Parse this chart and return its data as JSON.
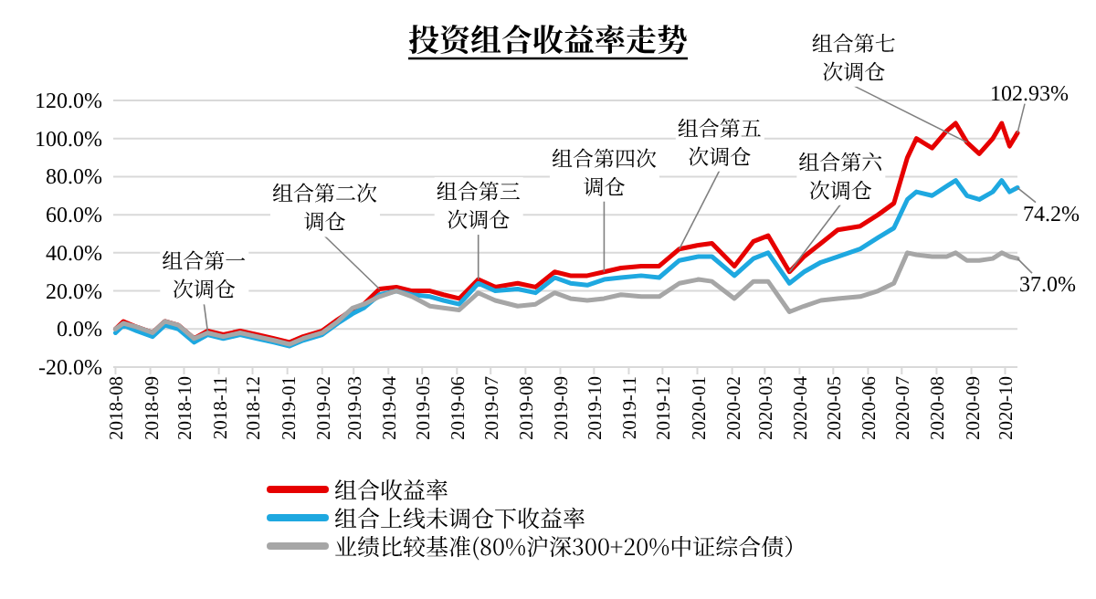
{
  "chart_data": {
    "type": "line",
    "title": "投资组合收益率走势",
    "x": [
      "2018-08-01",
      "2018-08-08",
      "2018-08-20",
      "2018-09-03",
      "2018-09-14",
      "2018-09-26",
      "2018-10-10",
      "2018-10-22",
      "2018-11-05",
      "2018-11-20",
      "2018-12-05",
      "2018-12-20",
      "2019-01-03",
      "2019-01-15",
      "2019-02-01",
      "2019-02-15",
      "2019-02-28",
      "2019-03-10",
      "2019-03-24",
      "2019-04-08",
      "2019-04-22",
      "2019-05-08",
      "2019-05-20",
      "2019-06-03",
      "2019-06-20",
      "2019-07-05",
      "2019-07-25",
      "2019-08-10",
      "2019-08-27",
      "2019-09-10",
      "2019-09-25",
      "2019-10-10",
      "2019-10-25",
      "2019-11-12",
      "2019-11-28",
      "2019-12-16",
      "2020-01-02",
      "2020-01-14",
      "2020-02-03",
      "2020-02-20",
      "2020-03-04",
      "2020-03-23",
      "2020-04-05",
      "2020-04-20",
      "2020-05-05",
      "2020-05-25",
      "2020-06-10",
      "2020-06-24",
      "2020-07-06",
      "2020-07-14",
      "2020-07-28",
      "2020-08-10",
      "2020-08-18",
      "2020-08-28",
      "2020-09-08",
      "2020-09-20",
      "2020-09-28",
      "2020-10-05",
      "2020-10-12"
    ],
    "series": [
      {
        "name": "组合收益率",
        "color": "#e60000",
        "values": [
          0,
          4,
          1,
          -2,
          4,
          2,
          -5,
          -1,
          -3,
          -1,
          -3,
          -5,
          -7,
          -4,
          -1,
          5,
          10,
          13,
          21,
          22,
          20,
          20,
          18,
          16,
          26,
          22,
          24,
          22,
          30,
          28,
          28,
          30,
          32,
          33,
          33,
          42,
          44,
          45,
          33,
          46,
          49,
          30,
          38,
          45,
          52,
          54,
          60,
          66,
          90,
          100,
          95,
          104,
          108,
          98,
          92,
          100,
          108,
          96,
          102.93
        ],
        "value_labels": [
          null,
          null,
          null,
          null,
          null,
          null,
          null,
          null,
          null,
          null,
          null,
          null,
          null,
          null,
          null,
          null,
          null,
          null,
          null,
          null,
          null,
          null,
          null,
          null,
          null,
          null,
          null,
          null,
          null,
          null,
          null,
          null,
          null,
          null,
          null,
          null,
          null,
          null,
          null,
          null,
          null,
          null,
          null,
          null,
          null,
          null,
          null,
          null,
          null,
          null,
          null,
          null,
          null,
          null,
          null,
          null,
          null,
          null,
          "102.93%"
        ]
      },
      {
        "name": "组合上线未调仓下收益率",
        "color": "#1ea8e0",
        "values": [
          -2,
          2,
          -1,
          -4,
          2,
          0,
          -7,
          -3,
          -5,
          -3,
          -5,
          -7,
          -9,
          -6,
          -3,
          3,
          8,
          11,
          18,
          20,
          18,
          17,
          15,
          13,
          24,
          20,
          21,
          19,
          27,
          24,
          23,
          26,
          27,
          28,
          27,
          36,
          38,
          38,
          28,
          37,
          40,
          24,
          30,
          35,
          38,
          42,
          48,
          53,
          68,
          72,
          70,
          75,
          78,
          70,
          68,
          72,
          78,
          72,
          74.2
        ],
        "value_labels": [
          null,
          null,
          null,
          null,
          null,
          null,
          null,
          null,
          null,
          null,
          null,
          null,
          null,
          null,
          null,
          null,
          null,
          null,
          null,
          null,
          null,
          null,
          null,
          null,
          null,
          null,
          null,
          null,
          null,
          null,
          null,
          null,
          null,
          null,
          null,
          null,
          null,
          null,
          null,
          null,
          null,
          null,
          null,
          null,
          null,
          null,
          null,
          null,
          null,
          null,
          null,
          null,
          null,
          null,
          null,
          null,
          null,
          null,
          "74.2%"
        ]
      },
      {
        "name": "业绩比较基准(80%沪深300+20%中证综合债）",
        "color": "#a6a6a6",
        "values": [
          0,
          3,
          1,
          -2,
          4,
          2,
          -5,
          -2,
          -4,
          -2,
          -4,
          -6,
          -8,
          -5,
          -2,
          4,
          11,
          13,
          17,
          20,
          17,
          12,
          11,
          10,
          19,
          15,
          12,
          13,
          19,
          16,
          15,
          16,
          18,
          17,
          17,
          24,
          26,
          25,
          16,
          25,
          25,
          9,
          12,
          15,
          16,
          17,
          20,
          24,
          40,
          39,
          38,
          38,
          40,
          36,
          36,
          37,
          40,
          38,
          37.0
        ],
        "value_labels": [
          null,
          null,
          null,
          null,
          null,
          null,
          null,
          null,
          null,
          null,
          null,
          null,
          null,
          null,
          null,
          null,
          null,
          null,
          null,
          null,
          null,
          null,
          null,
          null,
          null,
          null,
          null,
          null,
          null,
          null,
          null,
          null,
          null,
          null,
          null,
          null,
          null,
          null,
          null,
          null,
          null,
          null,
          null,
          null,
          null,
          null,
          null,
          null,
          null,
          null,
          null,
          null,
          null,
          null,
          null,
          null,
          null,
          null,
          "37.0%"
        ]
      }
    ],
    "xlim": [
      "2018-07-30",
      "2020-10-12"
    ],
    "xticks": [
      "2018-08",
      "2018-09",
      "2018-10",
      "2018-11",
      "2018-12",
      "2019-01",
      "2019-02",
      "2019-03",
      "2019-04",
      "2019-05",
      "2019-06",
      "2019-07",
      "2019-08",
      "2019-09",
      "2019-10",
      "2019-11",
      "2019-12",
      "2020-01",
      "2020-02",
      "2020-03",
      "2020-04",
      "2020-05",
      "2020-06",
      "2020-07",
      "2020-08",
      "2020-09",
      "2020-10"
    ],
    "ylim": [
      -20,
      120
    ],
    "yticks": [
      {
        "value": -20,
        "label": "-20.0%"
      },
      {
        "value": 0,
        "label": "0.0%"
      },
      {
        "value": 20,
        "label": "20.0%"
      },
      {
        "value": 40,
        "label": "40.0%"
      },
      {
        "value": 60,
        "label": "60.0%"
      },
      {
        "value": 80,
        "label": "80.0%"
      },
      {
        "value": 100,
        "label": "100.0%"
      },
      {
        "value": 120,
        "label": "120.0%"
      }
    ],
    "annotations": [
      {
        "text": "组合第一次调仓",
        "x": "2018-10-22",
        "y": -1
      },
      {
        "text": "组合第二次调仓",
        "x": "2019-03-24",
        "y": 21
      },
      {
        "text": "组合第三次调仓",
        "x": "2019-06-20",
        "y": 26
      },
      {
        "text": "组合第四次调仓",
        "x": "2019-10-10",
        "y": 30
      },
      {
        "text": "组合第五次调仓",
        "x": "2019-12-16",
        "y": 42
      },
      {
        "text": "组合第六次调仓",
        "x": "2020-03-23",
        "y": 30
      },
      {
        "text": "组合第七次调仓",
        "x": "2020-08-28",
        "y": 98
      }
    ],
    "grid": "y",
    "legend": "bottom",
    "line_style": "solid"
  }
}
